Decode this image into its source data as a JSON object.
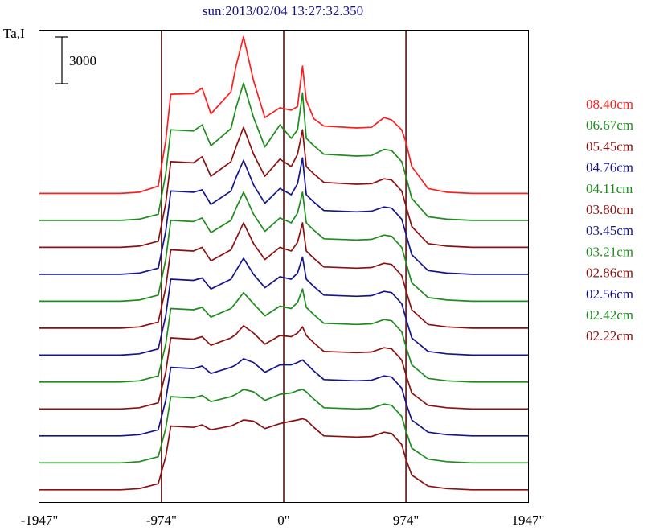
{
  "chart_data": {
    "type": "line",
    "title": "sun:2013/02/04 13:27:32.350",
    "ylabel": "Ta,I",
    "scale_bar_label": "3000",
    "scale_bar_value": 3000,
    "xlim": [
      -1947,
      1947
    ],
    "x_ticks": [
      -1947,
      -974,
      0,
      974,
      1947
    ],
    "x_tick_labels": [
      "-1947\"",
      "-974\"",
      "0\"",
      "974\"",
      "1947\""
    ],
    "vertical_lines": [
      -974,
      0,
      974
    ],
    "grid": false,
    "legend_placement": "right",
    "series_offset": 2200,
    "ylim": [
      -1000,
      37500
    ],
    "series": [
      {
        "name": "08.40cm",
        "color": "#ff1e1e",
        "baseline": 24200,
        "x": [
          -1947,
          -1430,
          -1300,
          -1150,
          -1000,
          -940,
          -900,
          -720,
          -650,
          -580,
          -420,
          -380,
          -320,
          -240,
          -150,
          -30,
          60,
          110,
          150,
          180,
          240,
          320,
          580,
          700,
          800,
          860,
          940,
          974,
          1020,
          1150,
          1300,
          1500,
          1947
        ],
        "values": [
          0,
          0,
          0,
          100,
          600,
          4300,
          8100,
          8150,
          8600,
          6500,
          8300,
          10400,
          12800,
          9200,
          6200,
          7000,
          6800,
          7100,
          10400,
          7600,
          6100,
          5500,
          5350,
          5400,
          6200,
          6000,
          5200,
          4200,
          2200,
          400,
          100,
          0,
          0
        ]
      },
      {
        "name": "06.67cm",
        "color": "#1e8c1e",
        "baseline": 22000,
        "x": [
          -1947,
          -1430,
          -1300,
          -1150,
          -1000,
          -940,
          -900,
          -720,
          -650,
          -580,
          -420,
          -380,
          -320,
          -240,
          -150,
          -30,
          60,
          110,
          150,
          180,
          240,
          320,
          580,
          700,
          800,
          860,
          940,
          974,
          1020,
          1150,
          1300,
          1500,
          1947
        ],
        "values": [
          0,
          0,
          0,
          100,
          500,
          3800,
          7400,
          7300,
          7800,
          6100,
          7500,
          9200,
          11200,
          8400,
          6000,
          7800,
          6700,
          7400,
          10400,
          6700,
          6100,
          5400,
          5250,
          5300,
          5800,
          5700,
          4800,
          3600,
          1800,
          300,
          100,
          0,
          0
        ]
      },
      {
        "name": "05.45cm",
        "color": "#8c1010",
        "baseline": 19800,
        "x": [
          -1947,
          -1430,
          -1300,
          -1150,
          -1000,
          -940,
          -900,
          -720,
          -650,
          -580,
          -420,
          -380,
          -320,
          -240,
          -150,
          -30,
          60,
          110,
          150,
          180,
          240,
          320,
          580,
          700,
          800,
          860,
          940,
          974,
          1020,
          1150,
          1300,
          1500,
          1947
        ],
        "values": [
          0,
          0,
          0,
          100,
          500,
          3600,
          7000,
          6900,
          7400,
          5800,
          7000,
          8200,
          9800,
          7600,
          5800,
          7200,
          6600,
          7600,
          9600,
          6600,
          6000,
          5300,
          5150,
          5200,
          5600,
          5500,
          4600,
          3400,
          1700,
          300,
          100,
          0,
          0
        ]
      },
      {
        "name": "04.76cm",
        "color": "#14148c",
        "baseline": 17600,
        "x": [
          -1947,
          -1430,
          -1300,
          -1150,
          -1000,
          -940,
          -900,
          -720,
          -650,
          -580,
          -420,
          -380,
          -320,
          -240,
          -150,
          -30,
          60,
          110,
          150,
          180,
          240,
          320,
          580,
          700,
          800,
          860,
          940,
          974,
          1020,
          1150,
          1300,
          1500,
          1947
        ],
        "values": [
          0,
          0,
          0,
          100,
          500,
          3500,
          6800,
          6700,
          6900,
          5700,
          6800,
          7900,
          9300,
          7300,
          5800,
          7000,
          6500,
          7400,
          9500,
          6500,
          5900,
          5200,
          5100,
          5150,
          5500,
          5400,
          4500,
          3300,
          1600,
          300,
          100,
          0,
          0
        ]
      },
      {
        "name": "04.11cm",
        "color": "#1e8c1e",
        "baseline": 15400,
        "x": [
          -1947,
          -1430,
          -1300,
          -1150,
          -1000,
          -940,
          -900,
          -720,
          -650,
          -580,
          -420,
          -380,
          -320,
          -240,
          -150,
          -30,
          60,
          110,
          150,
          180,
          240,
          320,
          580,
          700,
          800,
          860,
          940,
          974,
          1020,
          1150,
          1300,
          1500,
          1947
        ],
        "values": [
          0,
          0,
          0,
          100,
          500,
          3400,
          6600,
          6500,
          6800,
          5600,
          6600,
          7600,
          8900,
          7100,
          5700,
          6800,
          6400,
          7200,
          8900,
          6400,
          5800,
          5100,
          5000,
          5050,
          5400,
          5300,
          4400,
          3200,
          1500,
          300,
          100,
          0,
          0
        ]
      },
      {
        "name": "03.80cm",
        "color": "#8c1010",
        "baseline": 13200,
        "x": [
          -1947,
          -1430,
          -1300,
          -1150,
          -1000,
          -940,
          -900,
          -720,
          -650,
          -580,
          -420,
          -380,
          -320,
          -240,
          -150,
          -30,
          60,
          110,
          150,
          180,
          240,
          320,
          580,
          700,
          800,
          860,
          940,
          974,
          1020,
          1150,
          1300,
          1500,
          1947
        ],
        "values": [
          0,
          0,
          0,
          100,
          500,
          3300,
          6400,
          6300,
          6600,
          5500,
          6400,
          7300,
          8600,
          6900,
          5600,
          6600,
          6300,
          7000,
          8600,
          6300,
          5700,
          5000,
          4900,
          4950,
          5300,
          5200,
          4300,
          3100,
          1500,
          300,
          100,
          0,
          0
        ]
      },
      {
        "name": "03.45cm",
        "color": "#14148c",
        "baseline": 11000,
        "x": [
          -1947,
          -1430,
          -1300,
          -1150,
          -1000,
          -940,
          -900,
          -720,
          -650,
          -580,
          -420,
          -380,
          -320,
          -240,
          -150,
          -30,
          60,
          110,
          150,
          180,
          240,
          320,
          580,
          700,
          800,
          860,
          940,
          974,
          1020,
          1150,
          1300,
          1500,
          1947
        ],
        "values": [
          0,
          0,
          0,
          100,
          500,
          3200,
          6200,
          6100,
          6300,
          5400,
          6200,
          6900,
          7900,
          6600,
          5500,
          6400,
          6200,
          6700,
          8000,
          6200,
          5600,
          4900,
          4800,
          4850,
          5200,
          5100,
          4200,
          3000,
          1400,
          300,
          100,
          0,
          0
        ]
      },
      {
        "name": "03.21cm",
        "color": "#1e8c1e",
        "baseline": 8800,
        "x": [
          -1947,
          -1430,
          -1300,
          -1150,
          -1000,
          -940,
          -900,
          -720,
          -650,
          -580,
          -420,
          -380,
          -320,
          -240,
          -150,
          -30,
          60,
          110,
          150,
          180,
          240,
          320,
          580,
          700,
          800,
          860,
          940,
          974,
          1020,
          1150,
          1300,
          1500,
          1947
        ],
        "values": [
          0,
          0,
          0,
          100,
          500,
          3100,
          6000,
          5900,
          6100,
          5300,
          6000,
          6500,
          7300,
          6400,
          5400,
          6200,
          6000,
          6500,
          7600,
          6100,
          5500,
          4800,
          4700,
          4750,
          5100,
          5000,
          4100,
          2900,
          1400,
          300,
          100,
          0,
          0
        ]
      },
      {
        "name": "02.86cm",
        "color": "#8c1010",
        "baseline": 6600,
        "x": [
          -1947,
          -1430,
          -1300,
          -1150,
          -1000,
          -940,
          -900,
          -720,
          -650,
          -580,
          -420,
          -380,
          -320,
          -240,
          -150,
          -30,
          60,
          110,
          150,
          180,
          240,
          320,
          580,
          700,
          800,
          860,
          940,
          974,
          1020,
          1150,
          1300,
          1500,
          1947
        ],
        "values": [
          0,
          0,
          0,
          100,
          500,
          3000,
          5800,
          5700,
          5900,
          5200,
          5800,
          6100,
          6800,
          6200,
          5300,
          6000,
          5900,
          6200,
          6700,
          6000,
          5400,
          4700,
          4600,
          4650,
          5000,
          4900,
          4000,
          2800,
          1300,
          300,
          100,
          0,
          0
        ]
      },
      {
        "name": "02.56cm",
        "color": "#14148c",
        "baseline": 4400,
        "x": [
          -1947,
          -1430,
          -1300,
          -1150,
          -1000,
          -940,
          -900,
          -720,
          -650,
          -580,
          -420,
          -380,
          -320,
          -240,
          -150,
          -30,
          60,
          110,
          150,
          180,
          240,
          320,
          580,
          700,
          800,
          860,
          940,
          974,
          1020,
          1150,
          1300,
          1500,
          1947
        ],
        "values": [
          0,
          0,
          0,
          100,
          500,
          2900,
          5600,
          5500,
          5700,
          5100,
          5600,
          5800,
          6300,
          6000,
          5200,
          5800,
          5800,
          6000,
          6200,
          5900,
          5300,
          4600,
          4500,
          4550,
          4900,
          4800,
          3900,
          2700,
          1300,
          300,
          100,
          0,
          0
        ]
      },
      {
        "name": "02.42cm",
        "color": "#1e8c1e",
        "baseline": 2200,
        "x": [
          -1947,
          -1430,
          -1300,
          -1150,
          -1000,
          -940,
          -900,
          -720,
          -650,
          -580,
          -420,
          -380,
          -320,
          -240,
          -150,
          -30,
          60,
          110,
          150,
          180,
          240,
          320,
          580,
          700,
          800,
          860,
          940,
          974,
          1020,
          1150,
          1300,
          1500,
          1947
        ],
        "values": [
          0,
          0,
          0,
          100,
          500,
          2800,
          5400,
          5300,
          5500,
          5000,
          5400,
          5600,
          6000,
          5800,
          5100,
          5600,
          5700,
          5900,
          6000,
          5800,
          5200,
          4500,
          4400,
          4450,
          4800,
          4700,
          3800,
          2600,
          1200,
          300,
          100,
          0,
          0
        ]
      },
      {
        "name": "02.22cm",
        "color": "#8c1010",
        "baseline": 0,
        "x": [
          -1947,
          -1430,
          -1300,
          -1150,
          -1000,
          -940,
          -900,
          -720,
          -650,
          -580,
          -420,
          -380,
          -320,
          -240,
          -150,
          -30,
          60,
          110,
          150,
          180,
          240,
          320,
          580,
          700,
          800,
          860,
          940,
          974,
          1020,
          1150,
          1300,
          1500,
          1947
        ],
        "values": [
          0,
          0,
          0,
          100,
          500,
          2700,
          5200,
          5100,
          5300,
          4900,
          5200,
          5400,
          5700,
          5600,
          5000,
          5400,
          5600,
          5700,
          5800,
          5700,
          5100,
          4400,
          4300,
          4350,
          4700,
          4600,
          3700,
          2500,
          1200,
          300,
          100,
          0,
          0
        ]
      }
    ]
  }
}
